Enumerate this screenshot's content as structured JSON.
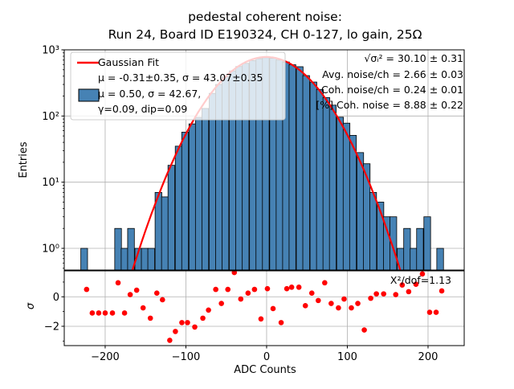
{
  "chart_data": {
    "type": "bar",
    "subtype": "histogram with gaussian fit line and residual scatter panel",
    "title": {
      "line1": "pedestal coherent noise:",
      "line2": "Run 24, Board ID E190324, CH 0-127, lo gain, 25Ω"
    },
    "xlabel": "ADC Counts",
    "xlim": [
      -250.7,
      244.8
    ],
    "xticks": {
      "values": [
        -200,
        -100,
        0,
        100,
        200
      ],
      "labels": [
        "−200",
        "−100",
        "0",
        "100",
        "200"
      ]
    },
    "main_panel": {
      "ylabel": "Entries",
      "yscale": "log",
      "ylim": [
        0.47,
        1000
      ],
      "yticks": {
        "values": [
          1000,
          100,
          10,
          1
        ],
        "labels": [
          "10³",
          "10²",
          "10¹",
          "10⁰"
        ]
      },
      "grid": true,
      "bin_width": 8.33,
      "bin_centers": [
        -226,
        -218,
        -209,
        -201,
        -193,
        -184,
        -176,
        -168,
        -159,
        -151,
        -143,
        -134,
        -126,
        -118,
        -109,
        -101,
        -92,
        -84,
        -76,
        -67,
        -59,
        -51,
        -42,
        -34,
        -26,
        -17,
        -9,
        -1,
        8,
        16,
        24,
        32,
        41,
        49,
        58,
        66,
        74,
        82,
        91,
        99,
        107,
        116,
        124,
        132,
        141,
        149,
        157,
        166,
        174,
        182,
        190,
        199,
        207,
        215
      ],
      "counts": [
        1,
        0,
        0,
        0,
        0,
        2,
        1,
        2,
        1,
        1,
        1,
        7,
        6,
        18,
        35,
        57,
        76,
        95,
        130,
        220,
        300,
        390,
        480,
        560,
        625,
        690,
        735,
        760,
        745,
        700,
        655,
        595,
        556,
        408,
        326,
        252,
        190,
        146,
        96,
        78,
        51,
        28,
        19,
        7,
        5,
        3,
        3,
        1,
        2,
        1,
        2,
        3,
        0,
        1
      ],
      "gaussian_fit": {
        "amplitude": 780,
        "mu": -0.31,
        "sigma": 43.07
      },
      "legend": {
        "fit_label": "Gaussian Fit",
        "fit_params": "μ = -0.31±0.35, σ = 43.07±0.35",
        "hist_params": "μ = 0.50, σ = 42.67,",
        "hist_params2": "γ=0.09, dip=0.09"
      },
      "stats": {
        "line1": "√σᵢ² = 30.10 ± 0.31",
        "line2": "Avg. noise/ch = 2.66 ± 0.03",
        "line3": "Coh. noise/ch = 0.24 ± 0.01",
        "line4": "[%] Coh. noise = 8.88 ± 0.22"
      }
    },
    "residual_panel": {
      "ylabel": "σ",
      "ylim": [
        -3.31,
        1.76
      ],
      "yticks": {
        "values": [
          0,
          -2
        ],
        "labels": [
          "0",
          "−2"
        ]
      },
      "annotation": "X²/dof=1.13",
      "x": [
        -223,
        -216,
        -208,
        -200,
        -191,
        -184,
        -176,
        -169,
        -161,
        -153,
        -144,
        -136,
        -129,
        -120,
        -113,
        -105,
        -98,
        -89,
        -79,
        -72,
        -63,
        -56,
        -48,
        -40,
        -32,
        -23,
        -15,
        -7,
        1,
        8,
        18,
        25,
        31,
        40,
        48,
        56,
        64,
        72,
        80,
        89,
        96,
        105,
        113,
        121,
        129,
        136,
        145,
        160,
        168,
        176,
        185,
        193,
        202,
        210,
        217
      ],
      "sigma": [
        0.5,
        -1.1,
        -1.1,
        -1.1,
        -1.1,
        0.95,
        -1.1,
        0.15,
        0.45,
        -0.75,
        -1.45,
        0.25,
        -0.2,
        -2.95,
        -2.35,
        -1.75,
        -1.75,
        -2.05,
        -1.45,
        -0.9,
        0.5,
        -0.45,
        0.5,
        1.65,
        -0.15,
        0.25,
        0.5,
        -1.5,
        0.55,
        -0.8,
        -1.75,
        0.55,
        0.65,
        0.65,
        -0.6,
        0.25,
        -0.25,
        0.95,
        -0.45,
        -0.75,
        -0.15,
        -0.75,
        -0.45,
        -2.25,
        -0.1,
        0.2,
        0.2,
        0.15,
        0.8,
        0.35,
        0.85,
        1.55,
        -1.05,
        -1.05,
        0.4
      ]
    },
    "colors": {
      "bar_fill": "#4682b4",
      "bar_edge": "#000000",
      "fit_line": "#ff0000",
      "residual_marker": "#ff0000",
      "grid": "#b0b0b0",
      "spine": "#000000",
      "legend_bg": "rgba(255,255,255,0.8)",
      "legend_border": "#cccccc"
    }
  }
}
